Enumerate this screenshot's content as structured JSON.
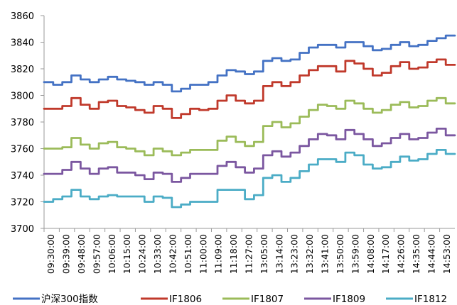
{
  "chart_data": {
    "type": "line",
    "title": "",
    "xlabel": "",
    "ylabel": "",
    "ylim": [
      3700,
      3860
    ],
    "yticks": [
      3700,
      3720,
      3740,
      3760,
      3780,
      3800,
      3820,
      3840,
      3860
    ],
    "x_tick_labels": [
      "09:30:00",
      "09:39:00",
      "09:48:00",
      "09:57:00",
      "10:06:00",
      "10:15:00",
      "10:24:00",
      "10:33:00",
      "10:42:00",
      "10:51:00",
      "11:00:00",
      "11:09:00",
      "11:18:00",
      "11:27:00",
      "13:05:00",
      "13:14:00",
      "13:23:00",
      "13:32:00",
      "13:41:00",
      "13:50:00",
      "13:59:00",
      "14:08:00",
      "14:17:00",
      "14:26:00",
      "14:35:00",
      "14:44:00",
      "14:53:00"
    ],
    "legend_position": "bottom",
    "series": [
      {
        "name": "沪深300指数",
        "color": "#4472C4",
        "values": [
          3810,
          3808,
          3810,
          3815,
          3812,
          3810,
          3812,
          3814,
          3812,
          3811,
          3810,
          3808,
          3810,
          3808,
          3803,
          3805,
          3808,
          3808,
          3810,
          3815,
          3819,
          3818,
          3816,
          3818,
          3826,
          3828,
          3826,
          3827,
          3832,
          3836,
          3838,
          3838,
          3836,
          3840,
          3840,
          3837,
          3834,
          3835,
          3838,
          3840,
          3837,
          3838,
          3841,
          3843,
          3845
        ]
      },
      {
        "name": "IF1806",
        "color": "#C0392B",
        "values": [
          3790,
          3790,
          3792,
          3798,
          3793,
          3790,
          3795,
          3796,
          3792,
          3791,
          3789,
          3787,
          3792,
          3790,
          3783,
          3786,
          3790,
          3789,
          3790,
          3796,
          3800,
          3796,
          3794,
          3796,
          3807,
          3810,
          3807,
          3810,
          3815,
          3819,
          3822,
          3822,
          3818,
          3826,
          3824,
          3820,
          3815,
          3817,
          3822,
          3825,
          3820,
          3821,
          3825,
          3827,
          3823
        ]
      },
      {
        "name": "IF1807",
        "color": "#9BBB59",
        "values": [
          3760,
          3760,
          3761,
          3768,
          3763,
          3760,
          3764,
          3765,
          3761,
          3760,
          3758,
          3755,
          3760,
          3758,
          3755,
          3757,
          3759,
          3759,
          3759,
          3766,
          3769,
          3765,
          3762,
          3765,
          3777,
          3780,
          3776,
          3779,
          3784,
          3789,
          3793,
          3792,
          3790,
          3796,
          3794,
          3790,
          3787,
          3789,
          3793,
          3795,
          3791,
          3792,
          3796,
          3798,
          3794
        ]
      },
      {
        "name": "IF1809",
        "color": "#7B57A0",
        "values": [
          3741,
          3741,
          3744,
          3750,
          3745,
          3741,
          3745,
          3746,
          3742,
          3742,
          3740,
          3737,
          3742,
          3741,
          3735,
          3738,
          3741,
          3741,
          3741,
          3747,
          3750,
          3746,
          3742,
          3745,
          3755,
          3758,
          3754,
          3757,
          3762,
          3767,
          3771,
          3770,
          3767,
          3774,
          3771,
          3767,
          3762,
          3764,
          3768,
          3771,
          3767,
          3768,
          3772,
          3775,
          3770
        ]
      },
      {
        "name": "IF1812",
        "color": "#4BACC6",
        "values": [
          3720,
          3722,
          3724,
          3729,
          3724,
          3722,
          3724,
          3725,
          3724,
          3724,
          3724,
          3720,
          3724,
          3723,
          3716,
          3718,
          3720,
          3720,
          3720,
          3729,
          3729,
          3729,
          3722,
          3725,
          3738,
          3740,
          3735,
          3738,
          3743,
          3748,
          3752,
          3752,
          3750,
          3757,
          3755,
          3748,
          3745,
          3746,
          3750,
          3754,
          3751,
          3752,
          3756,
          3759,
          3756
        ]
      }
    ]
  }
}
